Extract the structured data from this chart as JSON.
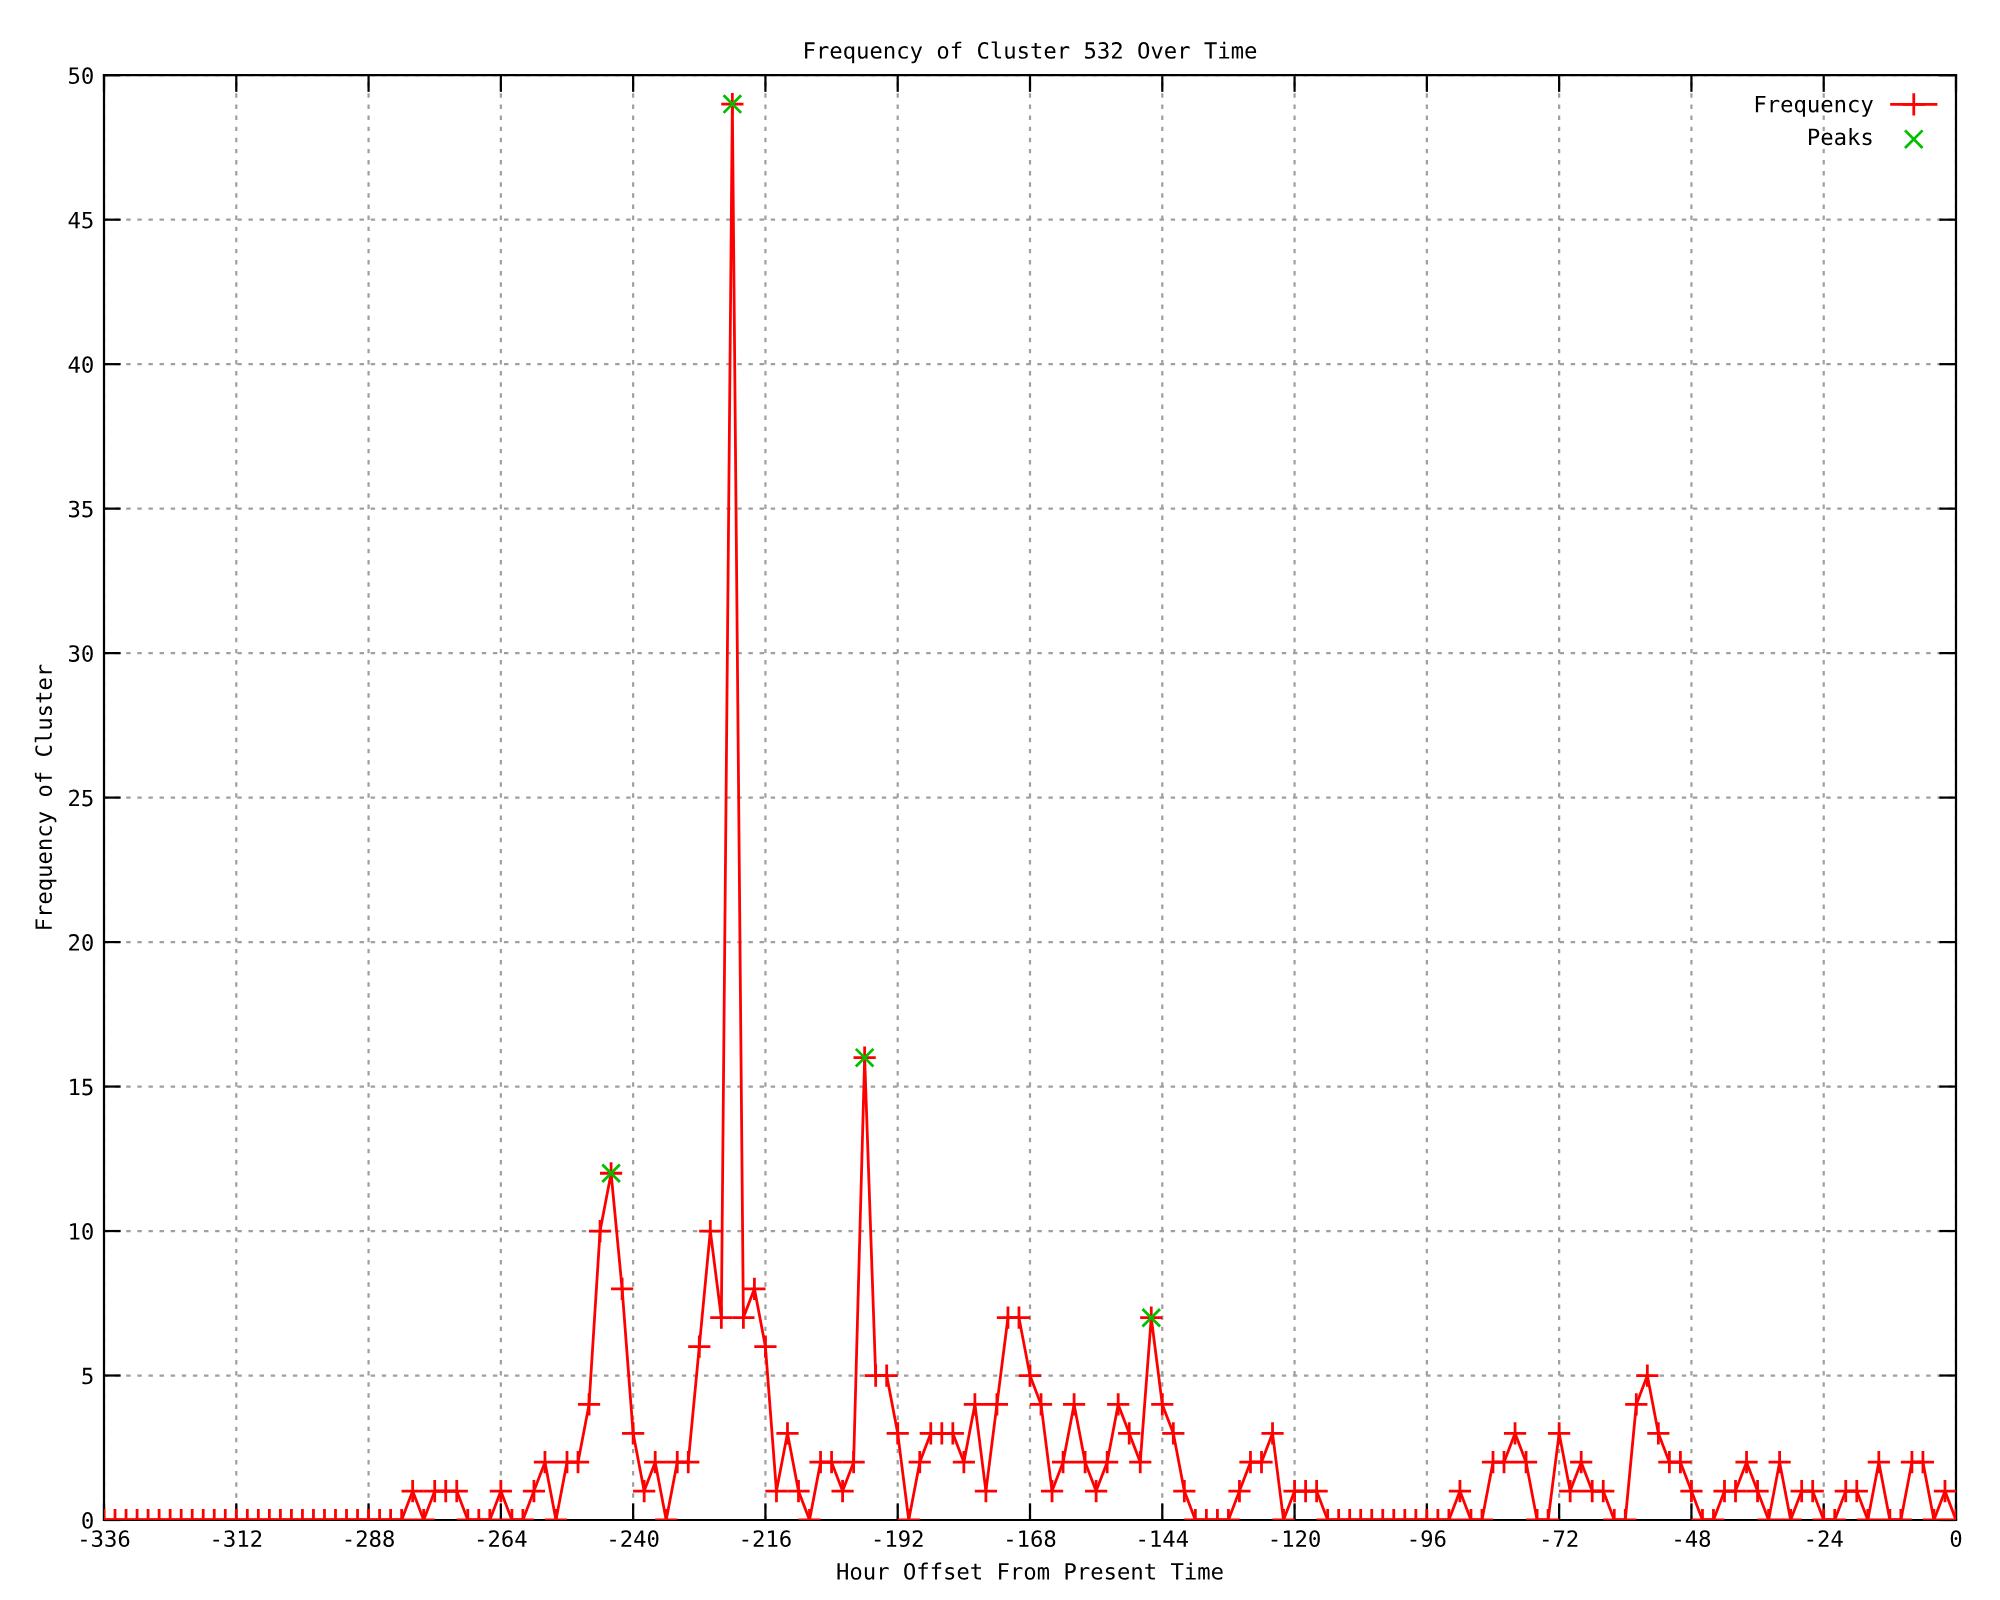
{
  "chart_data": {
    "type": "line",
    "title": "Frequency of Cluster 532 Over Time",
    "xlabel": "Hour Offset From Present Time",
    "ylabel": "Frequency of Cluster",
    "x": [
      -336,
      -334,
      -332,
      -330,
      -328,
      -326,
      -324,
      -322,
      -320,
      -318,
      -316,
      -314,
      -312,
      -310,
      -308,
      -306,
      -304,
      -302,
      -300,
      -298,
      -296,
      -294,
      -292,
      -290,
      -288,
      -286,
      -284,
      -282,
      -280,
      -278,
      -276,
      -274,
      -272,
      -270,
      -268,
      -266,
      -264,
      -262,
      -260,
      -258,
      -256,
      -254,
      -252,
      -250,
      -248,
      -246,
      -244,
      -242,
      -240,
      -238,
      -236,
      -234,
      -232,
      -230,
      -228,
      -226,
      -224,
      -222,
      -220,
      -218,
      -216,
      -214,
      -212,
      -210,
      -208,
      -206,
      -204,
      -202,
      -200,
      -198,
      -196,
      -194,
      -192,
      -190,
      -188,
      -186,
      -184,
      -182,
      -180,
      -178,
      -176,
      -174,
      -172,
      -170,
      -168,
      -166,
      -164,
      -162,
      -160,
      -158,
      -156,
      -154,
      -152,
      -150,
      -148,
      -146,
      -144,
      -142,
      -140,
      -138,
      -136,
      -134,
      -132,
      -130,
      -128,
      -126,
      -124,
      -122,
      -120,
      -118,
      -116,
      -114,
      -112,
      -110,
      -108,
      -106,
      -104,
      -102,
      -100,
      -98,
      -96,
      -94,
      -92,
      -90,
      -88,
      -86,
      -84,
      -82,
      -80,
      -78,
      -76,
      -74,
      -72,
      -70,
      -68,
      -66,
      -64,
      -62,
      -60,
      -58,
      -56,
      -54,
      -52,
      -50,
      -48,
      -46,
      -44,
      -42,
      -40,
      -38,
      -36,
      -34,
      -32,
      -30,
      -28,
      -26,
      -24,
      -22,
      -20,
      -18,
      -16,
      -14,
      -12,
      -10,
      -8,
      -6,
      -4,
      -2,
      0
    ],
    "series": [
      {
        "name": "Frequency",
        "color": "#ff0000",
        "marker": "cross",
        "values": [
          0,
          0,
          0,
          0,
          0,
          0,
          0,
          0,
          0,
          0,
          0,
          0,
          0,
          0,
          0,
          0,
          0,
          0,
          0,
          0,
          0,
          0,
          0,
          0,
          0,
          0,
          0,
          0,
          1,
          0,
          1,
          1,
          1,
          0,
          0,
          0,
          1,
          0,
          0,
          1,
          2,
          0,
          2,
          2,
          4,
          10,
          12,
          8,
          3,
          1,
          2,
          0,
          2,
          2,
          6,
          10,
          7,
          49,
          7,
          8,
          6,
          1,
          3,
          1,
          0,
          2,
          2,
          1,
          2,
          16,
          5,
          5,
          3,
          0,
          2,
          3,
          3,
          3,
          2,
          4,
          1,
          4,
          7,
          7,
          5,
          4,
          1,
          2,
          4,
          2,
          1,
          2,
          4,
          3,
          2,
          7,
          4,
          3,
          1,
          0,
          0,
          0,
          0,
          1,
          2,
          2,
          3,
          0,
          1,
          1,
          1,
          0,
          0,
          0,
          0,
          0,
          0,
          0,
          0,
          0,
          0,
          0,
          0,
          1,
          0,
          0,
          2,
          2,
          3,
          2,
          0,
          0,
          3,
          1,
          2,
          1,
          1,
          0,
          0,
          4,
          5,
          3,
          2,
          2,
          1,
          0,
          0,
          1,
          1,
          2,
          1,
          0,
          2,
          0,
          1,
          1,
          0,
          0,
          1,
          1,
          0,
          2,
          0,
          0,
          2,
          2,
          0,
          1,
          0
        ]
      },
      {
        "name": "Peaks",
        "type": "scatter",
        "color": "#00c000",
        "marker": "cross",
        "x": [
          -244,
          -222,
          -198,
          -146
        ],
        "values": [
          12,
          49,
          16,
          7
        ]
      }
    ],
    "xlim": [
      -336,
      0
    ],
    "xticks": [
      -336,
      -312,
      -288,
      -264,
      -240,
      -216,
      -192,
      -168,
      -144,
      -120,
      -96,
      -72,
      -48,
      -24,
      0
    ],
    "ylim": [
      0,
      50
    ],
    "yticks": [
      0,
      5,
      10,
      15,
      20,
      25,
      30,
      35,
      40,
      45,
      50
    ],
    "grid": true,
    "legend": "top right"
  }
}
